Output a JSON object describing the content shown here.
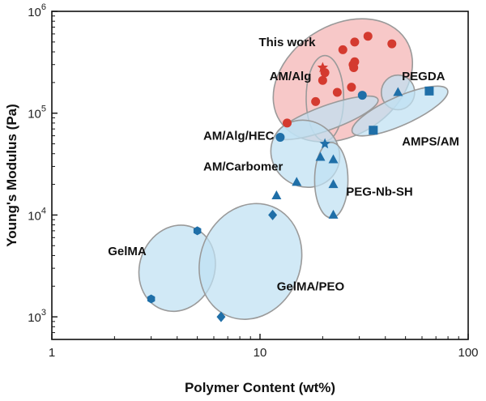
{
  "chart_data": {
    "type": "scatter",
    "xlabel": "Polymer Content (wt%)",
    "ylabel": "Young's Modulus (Pa)",
    "xscale": "log",
    "yscale": "log",
    "xlim": [
      1,
      100
    ],
    "ylim": [
      600,
      1000000
    ],
    "x_ticks": [
      {
        "value": 1,
        "label": "1"
      },
      {
        "value": 10,
        "label": "10"
      },
      {
        "value": 100,
        "label": "100"
      }
    ],
    "y_ticks": [
      {
        "value": 1000,
        "base": "10",
        "exp": "3"
      },
      {
        "value": 10000,
        "base": "10",
        "exp": "4"
      },
      {
        "value": 100000,
        "base": "10",
        "exp": "5"
      },
      {
        "value": 1000000,
        "base": "10",
        "exp": "6"
      }
    ],
    "colors": {
      "blue_marker": "#1f6fa8",
      "red_marker": "#d43a2f",
      "blue_fill": "#bfe0f2",
      "red_fill": "#f5b8b8",
      "ellipse_stroke": "#9a9a9a"
    },
    "groups": [
      {
        "name": "This work",
        "label": "This work",
        "marker": "circle",
        "color": "red",
        "region": {
          "cx": 25,
          "cy": 210000,
          "rx": 0.36,
          "ry": 0.54,
          "angle": -33,
          "fill": "red"
        },
        "label_pos": {
          "x": 13.5,
          "y": 500000
        },
        "points": [
          {
            "x": 13.5,
            "y": 80000
          },
          {
            "x": 18.5,
            "y": 130000
          },
          {
            "x": 20,
            "y": 210000
          },
          {
            "x": 20.5,
            "y": 250000
          },
          {
            "x": 23.5,
            "y": 160000
          },
          {
            "x": 25,
            "y": 420000
          },
          {
            "x": 27.5,
            "y": 180000
          },
          {
            "x": 28,
            "y": 300000
          },
          {
            "x": 28.2,
            "y": 280000
          },
          {
            "x": 28.5,
            "y": 320000
          },
          {
            "x": 28.5,
            "y": 500000
          },
          {
            "x": 33,
            "y": 570000
          },
          {
            "x": 43,
            "y": 480000
          }
        ]
      },
      {
        "name": "AM/Alg",
        "label": "AM/Alg",
        "marker": "star",
        "color": "red",
        "region": {
          "cx": 20.5,
          "cy": 140000,
          "rx": 0.09,
          "ry": 0.42,
          "angle": 0,
          "fill": "none"
        },
        "label_pos": {
          "x": 14,
          "y": 230000
        },
        "points": [
          {
            "x": 20,
            "y": 280000
          }
        ]
      },
      {
        "name": "PEGDA",
        "label": "PEGDA",
        "marker": "triangle",
        "color": "blue",
        "region": {
          "cx": 46,
          "cy": 160000,
          "rx": 0.08,
          "ry": 0.17,
          "angle": 0,
          "fill": "blue"
        },
        "label_pos": {
          "x": 61,
          "y": 230000
        },
        "points": [
          {
            "x": 46,
            "y": 160000
          }
        ]
      },
      {
        "name": "AMPS/AM",
        "label": "AMPS/AM",
        "marker": "square",
        "color": "blue",
        "region": {
          "cx": 47,
          "cy": 105000,
          "rx": 0.25,
          "ry": 0.14,
          "angle": -24,
          "fill": "blue"
        },
        "label_pos": {
          "x": 66,
          "y": 53000
        },
        "points": [
          {
            "x": 35,
            "y": 68000
          },
          {
            "x": 65,
            "y": 165000
          }
        ]
      },
      {
        "name": "AM/Alg/HEC",
        "label": "AM/Alg/HEC",
        "marker": "circle",
        "color": "blue",
        "region": {
          "cx": 21,
          "cy": 90000,
          "rx": 0.26,
          "ry": 0.12,
          "angle": -20,
          "fill": "blue"
        },
        "label_pos": {
          "x": 7.9,
          "y": 60000
        },
        "points": [
          {
            "x": 12.5,
            "y": 58000
          },
          {
            "x": 31,
            "y": 150000
          }
        ]
      },
      {
        "name": "AM/Carbomer",
        "label": "AM/Carbomer",
        "marker": "star",
        "color": "blue",
        "region": {
          "cx": 16.5,
          "cy": 40000,
          "rx": 0.17,
          "ry": 0.32,
          "angle": 36,
          "fill": "blue"
        },
        "label_pos": {
          "x": 8.3,
          "y": 30000
        },
        "points": [
          {
            "x": 20.5,
            "y": 50000
          }
        ]
      },
      {
        "name": "PEG-Nb-SH",
        "label": "PEG-Nb-SH",
        "marker": "triangle",
        "color": "blue",
        "region": {
          "cx": 22,
          "cy": 22000,
          "rx": 0.08,
          "ry": 0.37,
          "angle": 0,
          "fill": "blue"
        },
        "label_pos": {
          "x": 37.5,
          "y": 17000
        },
        "points": [
          {
            "x": 12,
            "y": 15500
          },
          {
            "x": 15,
            "y": 21000
          },
          {
            "x": 19.5,
            "y": 37000
          },
          {
            "x": 22.5,
            "y": 35000
          },
          {
            "x": 22.5,
            "y": 20000
          },
          {
            "x": 22.5,
            "y": 10000
          }
        ]
      },
      {
        "name": "GelMA",
        "label": "GelMA",
        "marker": "hexagon",
        "color": "blue",
        "region": {
          "cx": 4,
          "cy": 3000,
          "rx": 0.18,
          "ry": 0.43,
          "angle": 20,
          "fill": "blue"
        },
        "label_pos": {
          "x": 2.3,
          "y": 4400
        },
        "points": [
          {
            "x": 3,
            "y": 1500
          },
          {
            "x": 5,
            "y": 7000
          }
        ]
      },
      {
        "name": "GelMA/PEO",
        "label": "GelMA/PEO",
        "marker": "diamond",
        "color": "blue",
        "region": {
          "cx": 9,
          "cy": 3500,
          "rx": 0.24,
          "ry": 0.58,
          "angle": 22,
          "fill": "blue"
        },
        "label_pos": {
          "x": 17.5,
          "y": 2000
        },
        "points": [
          {
            "x": 6.5,
            "y": 1000
          },
          {
            "x": 11.5,
            "y": 10000
          }
        ]
      }
    ]
  }
}
